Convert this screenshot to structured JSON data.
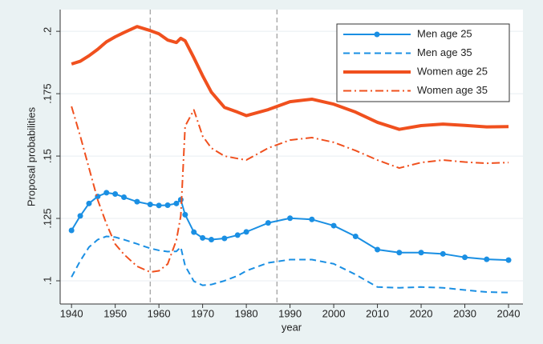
{
  "chart_data": {
    "type": "line",
    "y_label": "Proposal probabilities",
    "x_label": "year",
    "x": [
      1940,
      1942,
      1944,
      1946,
      1948,
      1950,
      1952,
      1955,
      1958,
      1960,
      1962,
      1964,
      1965,
      1966,
      1968,
      1970,
      1972,
      1975,
      1978,
      1980,
      1985,
      1990,
      1995,
      2000,
      2005,
      2010,
      2015,
      2020,
      2025,
      2030,
      2035,
      2040
    ],
    "series": [
      {
        "name": "Men age 25",
        "color": "#1a8fe3",
        "style": "solid",
        "width": 2,
        "markers": true,
        "values": [
          0.1202,
          0.126,
          0.131,
          0.1338,
          0.1353,
          0.1348,
          0.1335,
          0.1317,
          0.1306,
          0.1302,
          0.1303,
          0.131,
          0.1325,
          0.1265,
          0.1195,
          0.1172,
          0.1165,
          0.117,
          0.1183,
          0.1196,
          0.1232,
          0.1251,
          0.1246,
          0.1221,
          0.1178,
          0.1125,
          0.1113,
          0.1113,
          0.1108,
          0.1094,
          0.1086,
          0.1083
        ]
      },
      {
        "name": "Men age 35",
        "color": "#1a8fe3",
        "style": "dash",
        "width": 2,
        "markers": false,
        "values": [
          0.1015,
          0.108,
          0.1135,
          0.1165,
          0.1178,
          0.1175,
          0.1165,
          0.1148,
          0.113,
          0.1122,
          0.1117,
          0.1118,
          0.1135,
          0.106,
          0.0998,
          0.0982,
          0.0985,
          0.1,
          0.102,
          0.104,
          0.1072,
          0.1085,
          0.1085,
          0.1068,
          0.1025,
          0.0975,
          0.0972,
          0.0975,
          0.0972,
          0.0963,
          0.0955,
          0.0953
        ]
      },
      {
        "name": "Women age 25",
        "color": "#f0501e",
        "style": "solid",
        "width": 4,
        "markers": false,
        "values": [
          0.1869,
          0.188,
          0.1902,
          0.1928,
          0.1958,
          0.1978,
          0.1995,
          0.2019,
          0.2003,
          0.199,
          0.1965,
          0.1955,
          0.1972,
          0.1962,
          0.1894,
          0.1822,
          0.1756,
          0.1695,
          0.1676,
          0.1662,
          0.1686,
          0.1718,
          0.1728,
          0.1708,
          0.1676,
          0.1635,
          0.1607,
          0.1622,
          0.1628,
          0.1623,
          0.1617,
          0.1618
        ]
      },
      {
        "name": "Women age 35",
        "color": "#f0501e",
        "style": "dashdot",
        "width": 2,
        "markers": false,
        "values": [
          0.1699,
          0.158,
          0.1452,
          0.1324,
          0.1228,
          0.1147,
          0.1106,
          0.1058,
          0.1035,
          0.104,
          0.1067,
          0.1163,
          0.126,
          0.162,
          0.1685,
          0.158,
          0.1532,
          0.15,
          0.149,
          0.1484,
          0.1532,
          0.1564,
          0.1574,
          0.1555,
          0.1522,
          0.1484,
          0.1452,
          0.1474,
          0.1484,
          0.1476,
          0.1471,
          0.1474
        ]
      }
    ],
    "xlim": [
      1937.4,
      2043.3
    ],
    "xticks": [
      1940,
      1950,
      1960,
      1970,
      1980,
      1990,
      2000,
      2010,
      2020,
      2030,
      2040
    ],
    "ylim": [
      0.0907,
      0.2087
    ],
    "yticks": [
      {
        "value": 0.1,
        "label": ".1"
      },
      {
        "value": 0.125,
        "label": ".125"
      },
      {
        "value": 0.15,
        "label": ".15"
      },
      {
        "value": 0.175,
        "label": ".175"
      },
      {
        "value": 0.2,
        "label": ".2"
      }
    ],
    "xlines": [
      1958,
      1987
    ],
    "grid": true,
    "legend": "top-right"
  }
}
